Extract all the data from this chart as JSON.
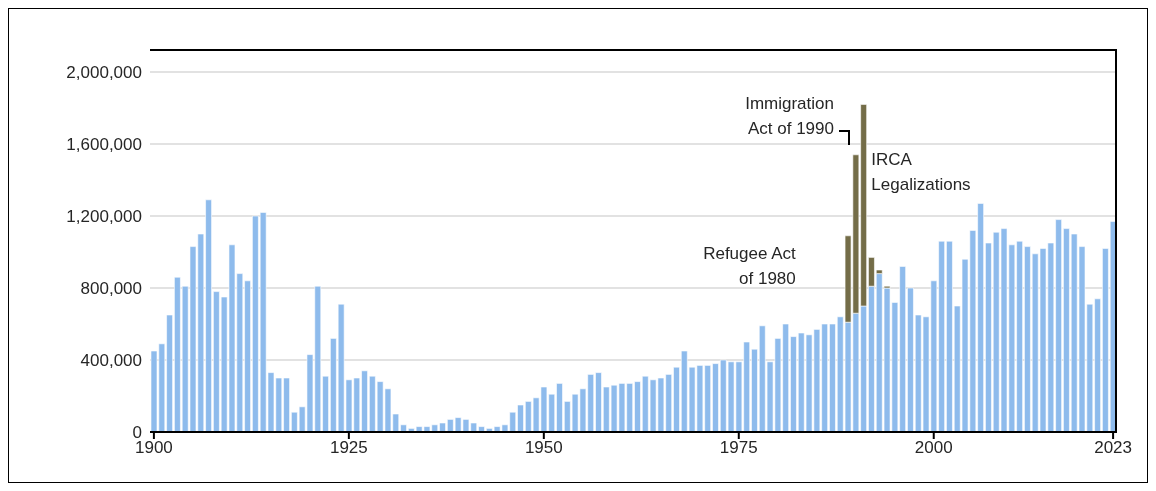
{
  "chart_data": {
    "type": "bar",
    "stacked": true,
    "legend": false,
    "grid": "y",
    "categories": [
      "1900",
      null,
      null,
      null,
      null,
      null,
      null,
      null,
      null,
      null,
      null,
      null,
      null,
      null,
      null,
      null,
      null,
      null,
      null,
      null,
      null,
      null,
      null,
      null,
      null,
      "1925",
      null,
      null,
      null,
      null,
      null,
      null,
      null,
      null,
      null,
      null,
      null,
      null,
      null,
      null,
      null,
      null,
      null,
      null,
      null,
      null,
      null,
      null,
      null,
      null,
      "1950",
      null,
      null,
      null,
      null,
      null,
      null,
      null,
      null,
      null,
      null,
      null,
      null,
      null,
      null,
      null,
      null,
      null,
      null,
      null,
      null,
      null,
      null,
      null,
      null,
      "1975",
      null,
      null,
      null,
      null,
      null,
      null,
      null,
      null,
      null,
      null,
      null,
      null,
      null,
      null,
      null,
      null,
      null,
      null,
      null,
      null,
      null,
      null,
      null,
      null,
      "2000",
      null,
      null,
      null,
      null,
      null,
      null,
      null,
      null,
      null,
      null,
      null,
      null,
      null,
      null,
      null,
      null,
      null,
      null,
      null,
      null,
      null,
      null,
      "2023"
    ],
    "ylim": [
      0,
      2000000
    ],
    "yticks": [
      0,
      {
        "value": 400000,
        "label": "400,000"
      },
      {
        "value": 800000,
        "label": "800,000"
      },
      {
        "value": 1200000,
        "label": "1,200,000"
      },
      {
        "value": 1600000,
        "label": "1,600,000"
      },
      {
        "value": 2000000,
        "label": "2,000,000"
      }
    ],
    "series": [
      {
        "color": "#8ebbec",
        "values": [
          450000,
          490000,
          650000,
          860000,
          810000,
          1030000,
          1100000,
          1290000,
          780000,
          750000,
          1040000,
          880000,
          840000,
          1200000,
          1220000,
          330000,
          300000,
          300000,
          110000,
          140000,
          430000,
          810000,
          310000,
          520000,
          710000,
          290000,
          300000,
          340000,
          310000,
          280000,
          240000,
          100000,
          40000,
          20000,
          30000,
          30000,
          40000,
          50000,
          70000,
          80000,
          70000,
          50000,
          30000,
          20000,
          30000,
          40000,
          110000,
          150000,
          170000,
          190000,
          250000,
          210000,
          270000,
          170000,
          210000,
          240000,
          320000,
          330000,
          250000,
          260000,
          270000,
          270000,
          280000,
          310000,
          290000,
          300000,
          320000,
          360000,
          450000,
          360000,
          370000,
          370000,
          380000,
          400000,
          390000,
          390000,
          500000,
          460000,
          590000,
          390000,
          520000,
          600000,
          530000,
          550000,
          540000,
          570000,
          600000,
          600000,
          640000,
          610000,
          660000,
          700000,
          810000,
          880000,
          800000,
          720000,
          920000,
          800000,
          650000,
          640000,
          840000,
          1060000,
          1060000,
          700000,
          960000,
          1120000,
          1270000,
          1050000,
          1110000,
          1130000,
          1040000,
          1060000,
          1030000,
          990000,
          1020000,
          1050000,
          1180000,
          1130000,
          1100000,
          1030000,
          710000,
          740000,
          1020000,
          1170000
        ]
      },
      {
        "name": "IRCA Legalizations",
        "color": "#746d48",
        "values": [
          null,
          null,
          null,
          null,
          null,
          null,
          null,
          null,
          null,
          null,
          null,
          null,
          null,
          null,
          null,
          null,
          null,
          null,
          null,
          null,
          null,
          null,
          null,
          null,
          null,
          null,
          null,
          null,
          null,
          null,
          null,
          null,
          null,
          null,
          null,
          null,
          null,
          null,
          null,
          null,
          null,
          null,
          null,
          null,
          null,
          null,
          null,
          null,
          null,
          null,
          null,
          null,
          null,
          null,
          null,
          null,
          null,
          null,
          null,
          null,
          null,
          null,
          null,
          null,
          null,
          null,
          null,
          null,
          null,
          null,
          null,
          null,
          null,
          null,
          null,
          null,
          null,
          null,
          null,
          null,
          null,
          null,
          null,
          null,
          null,
          null,
          null,
          null,
          null,
          480000,
          880000,
          1120000,
          160000,
          20000,
          10000,
          null,
          null,
          null,
          null,
          null,
          null,
          null,
          null,
          null,
          null,
          null,
          null,
          null,
          null,
          null,
          null,
          null,
          null,
          null,
          null,
          null,
          null,
          null,
          null,
          null,
          null,
          null,
          null,
          null
        ]
      }
    ],
    "annotations": [
      "Immigration Act of 1990",
      "Refugee Act of 1980"
    ]
  }
}
